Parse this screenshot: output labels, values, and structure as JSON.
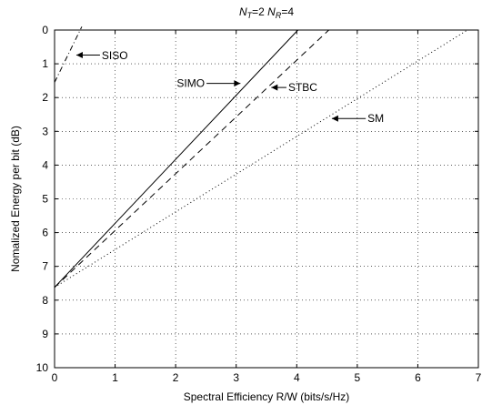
{
  "chart_data": {
    "type": "line",
    "title": {
      "n_t": "N",
      "n_t_sub": "T",
      "n_t_val": "=2  ",
      "n_r": "N",
      "n_r_sub": "R",
      "n_r_val": "=4"
    },
    "xlabel": "Spectral Efficiency R/W (bits/s/Hz)",
    "ylabel": "Nomalized Energy per bit (dB)",
    "xlim": [
      0,
      7
    ],
    "ylim": [
      0,
      10
    ],
    "y_inverted": true,
    "grid": true,
    "x_ticks": [
      "0",
      "1",
      "2",
      "3",
      "4",
      "5",
      "6",
      "7"
    ],
    "y_ticks": [
      "0",
      "1",
      "2",
      "3",
      "4",
      "5",
      "6",
      "7",
      "8",
      "9",
      "10"
    ],
    "series": [
      {
        "name": "SISO",
        "style": "dashdot",
        "x": [
          0.0,
          0.45
        ],
        "y": [
          1.55,
          -0.1
        ]
      },
      {
        "name": "SIMO",
        "style": "solid",
        "x": [
          0.0,
          4.02
        ],
        "y": [
          7.62,
          0.0
        ]
      },
      {
        "name": "STBC",
        "style": "dashed",
        "x": [
          0.0,
          4.53
        ],
        "y": [
          7.62,
          0.0
        ]
      },
      {
        "name": "SM",
        "style": "dotted",
        "x": [
          0.0,
          6.82
        ],
        "y": [
          7.62,
          0.0
        ]
      }
    ],
    "annotations": [
      {
        "label": "SISO",
        "text_x": 0.78,
        "text_y": 0.75,
        "arrow_to_x": 0.36,
        "arrow_to_y": 0.74,
        "anchor": "start"
      },
      {
        "label": "SIMO",
        "text_x": 2.48,
        "text_y": 1.58,
        "arrow_to_x": 3.07,
        "arrow_to_y": 1.58,
        "anchor": "end"
      },
      {
        "label": "STBC",
        "text_x": 3.86,
        "text_y": 1.7,
        "arrow_to_x": 3.58,
        "arrow_to_y": 1.7,
        "anchor": "start"
      },
      {
        "label": "SM",
        "text_x": 5.17,
        "text_y": 2.62,
        "arrow_to_x": 4.58,
        "arrow_to_y": 2.62,
        "anchor": "start"
      }
    ]
  }
}
